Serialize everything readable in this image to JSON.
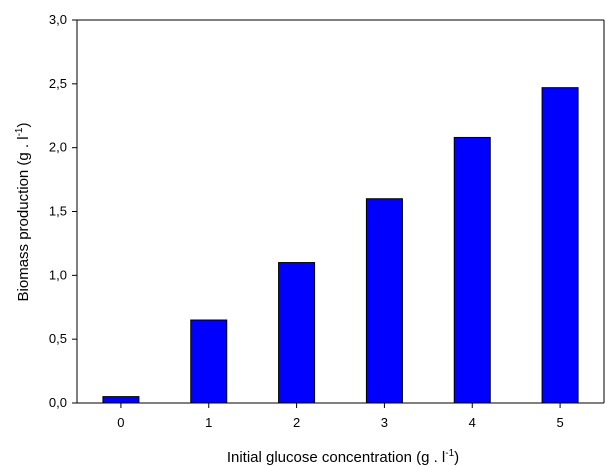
{
  "chart_data": {
    "type": "bar",
    "title": "",
    "xlabel": "Initial glucose concentration (g . l",
    "xlabel_sup": "-1",
    "xlabel_end": ")",
    "ylabel": "Biomass production (g . l",
    "ylabel_sup": "-1",
    "ylabel_end": ")",
    "categories": [
      "0",
      "1",
      "2",
      "3",
      "4",
      "5"
    ],
    "values": [
      0.05,
      0.65,
      1.1,
      1.6,
      2.08,
      2.47
    ],
    "ylim": [
      0,
      3.0
    ],
    "yticks": [
      0,
      0.5,
      1.0,
      1.5,
      2.0,
      2.5,
      3.0
    ],
    "ytick_labels": [
      "0,0",
      "0,5",
      "1,0",
      "1,5",
      "2,0",
      "2,5",
      "3,0"
    ],
    "bar_color": "#0000ff",
    "grid": false,
    "legend": false
  }
}
